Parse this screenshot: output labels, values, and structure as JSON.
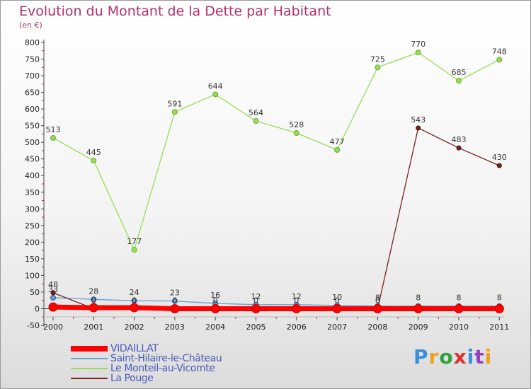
{
  "title": "Evolution du Montant de la Dette par Habitant",
  "unit": "(en €)",
  "brand": {
    "text": "Proxiti",
    "letter_colors": [
      "#3a8fd8",
      "#f0a020",
      "#30a040",
      "#e03030",
      "#3a8fd8",
      "#9040c0",
      "#f0a020"
    ]
  },
  "chart_data": {
    "type": "line",
    "categories": [
      "2000",
      "2001",
      "2002",
      "2003",
      "2004",
      "2005",
      "2006",
      "2007",
      "2008",
      "2009",
      "2010",
      "2011"
    ],
    "y_ticks": [
      -50,
      0,
      50,
      100,
      150,
      200,
      250,
      300,
      350,
      400,
      450,
      500,
      550,
      600,
      650,
      700,
      750,
      800
    ],
    "ylim": [
      -50,
      800
    ],
    "grid": false,
    "legend_placement": "bottom-left",
    "series": [
      {
        "name": "VIDAILLAT",
        "color": "#ff0000",
        "values": [
          5,
          3,
          3,
          0,
          0,
          0,
          0,
          0,
          0,
          0,
          0,
          0
        ],
        "labels": []
      },
      {
        "name": "Saint-Hilaire-le-Château",
        "color": "#6aa0d0",
        "values": [
          33,
          28,
          24,
          23,
          16,
          12,
          12,
          10,
          8,
          8,
          8,
          8
        ],
        "labels": [
          "33",
          "28",
          "24",
          "23",
          "16",
          "12",
          "12",
          "10",
          "8",
          "8",
          "8",
          "8"
        ]
      },
      {
        "name": "Le Monteil-au-Vicomte",
        "color": "#99dd55",
        "values": [
          513,
          445,
          177,
          591,
          644,
          564,
          528,
          477,
          725,
          770,
          685,
          748
        ],
        "labels": [
          "513",
          "445",
          "177",
          "591",
          "644",
          "564",
          "528",
          "477",
          "725",
          "770",
          "685",
          "748"
        ]
      },
      {
        "name": "La Pouge",
        "color": "#7a2020",
        "values": [
          48,
          0,
          0,
          0,
          0,
          0,
          0,
          0,
          0,
          543,
          483,
          430
        ],
        "labels": [
          "48",
          "0",
          "0",
          "0",
          "0",
          "0",
          "0",
          "0",
          "0",
          "543",
          "483",
          "430"
        ]
      }
    ]
  }
}
